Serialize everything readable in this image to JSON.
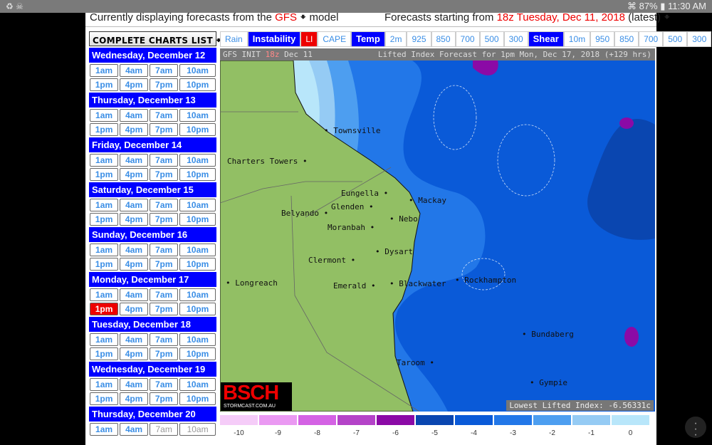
{
  "status": {
    "battery": "87%",
    "time": "11:30 AM",
    "icons": [
      "recycle-icon",
      "skull-icon",
      "wifi-icon",
      "battery-icon"
    ]
  },
  "header": {
    "left_prefix": "Currently displaying forecasts from the",
    "model": "GFS",
    "left_suffix": "model",
    "right_prefix": "Forecasts starting from",
    "run": "18z Tuesday, Dec 11, 2018",
    "right_suffix": "(latest)"
  },
  "charts_list_label": "COMPLETE CHARTS LIST",
  "days": [
    {
      "label": "Wednesday, December 12",
      "hours": [
        "1am",
        "4am",
        "7am",
        "10am",
        "1pm",
        "4pm",
        "7pm",
        "10pm"
      ]
    },
    {
      "label": "Thursday, December 13",
      "hours": [
        "1am",
        "4am",
        "7am",
        "10am",
        "1pm",
        "4pm",
        "7pm",
        "10pm"
      ]
    },
    {
      "label": "Friday, December 14",
      "hours": [
        "1am",
        "4am",
        "7am",
        "10am",
        "1pm",
        "4pm",
        "7pm",
        "10pm"
      ]
    },
    {
      "label": "Saturday, December 15",
      "hours": [
        "1am",
        "4am",
        "7am",
        "10am",
        "1pm",
        "4pm",
        "7pm",
        "10pm"
      ]
    },
    {
      "label": "Sunday, December 16",
      "hours": [
        "1am",
        "4am",
        "7am",
        "10am",
        "1pm",
        "4pm",
        "7pm",
        "10pm"
      ]
    },
    {
      "label": "Monday, December 17",
      "hours": [
        "1am",
        "4am",
        "7am",
        "10am",
        "1pm",
        "4pm",
        "7pm",
        "10pm"
      ],
      "selected": "1pm"
    },
    {
      "label": "Tuesday, December 18",
      "hours": [
        "1am",
        "4am",
        "7am",
        "10am",
        "1pm",
        "4pm",
        "7pm",
        "10pm"
      ]
    },
    {
      "label": "Wednesday, December 19",
      "hours": [
        "1am",
        "4am",
        "7am",
        "10am",
        "1pm",
        "4pm",
        "7pm",
        "10pm"
      ]
    },
    {
      "label": "Thursday, December 20",
      "hours": [
        "1am",
        "4am",
        "7am",
        "10am"
      ],
      "disabled": [
        "7am",
        "10am"
      ]
    }
  ],
  "tabs": [
    {
      "label": "Rain",
      "style": "link"
    },
    {
      "label": "Instability",
      "style": "blue"
    },
    {
      "label": "LI",
      "style": "red"
    },
    {
      "label": "CAPE",
      "style": "link"
    },
    {
      "label": "Temp",
      "style": "blue"
    },
    {
      "label": "2m",
      "style": "link"
    },
    {
      "label": "925",
      "style": "link"
    },
    {
      "label": "850",
      "style": "link"
    },
    {
      "label": "700",
      "style": "link"
    },
    {
      "label": "500",
      "style": "link"
    },
    {
      "label": "300",
      "style": "link"
    },
    {
      "label": "Shear",
      "style": "blue"
    },
    {
      "label": "10m",
      "style": "link"
    },
    {
      "label": "950",
      "style": "link"
    },
    {
      "label": "850",
      "style": "link"
    },
    {
      "label": "700",
      "style": "link"
    },
    {
      "label": "500",
      "style": "link"
    },
    {
      "label": "300",
      "style": "link"
    }
  ],
  "map": {
    "title_left_a": "GFS INIT",
    "title_left_run": "18z",
    "title_left_b": "Dec 11",
    "title_right": "Lifted Index Forecast for 1pm Mon, Dec 17, 2018 (+129 hrs)",
    "cities": [
      "Townsville",
      "Charters Towers",
      "Eungella",
      "Mackay",
      "Glenden",
      "Belyando",
      "Nebo",
      "Moranbah",
      "Dysart",
      "Clermont",
      "Longreach",
      "Emerald",
      "Blackwater",
      "Rockhampton",
      "Bundaberg",
      "Taroom",
      "Gympie"
    ],
    "logo": "BSCH",
    "logo_sub": "STORMCAST.COM.AU",
    "lowest": "Lowest Lifted Index: -6.56331c"
  },
  "legend": [
    {
      "v": "-10",
      "c": "#f5ccf8"
    },
    {
      "v": "-9",
      "c": "#ea99f2"
    },
    {
      "v": "-8",
      "c": "#d462e4"
    },
    {
      "v": "-7",
      "c": "#b443c8"
    },
    {
      "v": "-6",
      "c": "#8b0aa6"
    },
    {
      "v": "-5",
      "c": "#0a46b0"
    },
    {
      "v": "-4",
      "c": "#0a5ad8"
    },
    {
      "v": "-3",
      "c": "#2277e8"
    },
    {
      "v": "-2",
      "c": "#4d9ef0"
    },
    {
      "v": "-1",
      "c": "#95cbf4"
    },
    {
      "v": "0",
      "c": "#b8e6fa"
    }
  ]
}
